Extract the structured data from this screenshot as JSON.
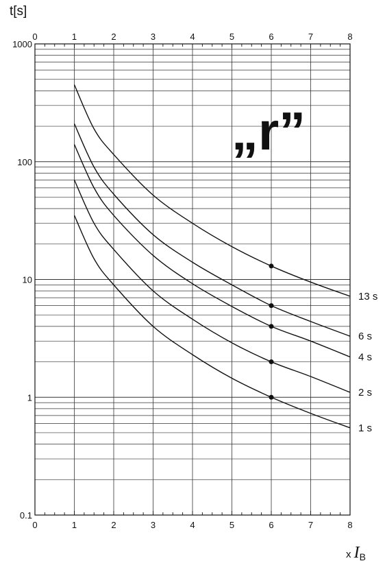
{
  "chart_data": {
    "type": "line",
    "annotation": "„r”",
    "ylabel": "t[s]",
    "xlabel_prefix": "x ",
    "xlabel_symbol": "I",
    "xlabel_subscript": "B",
    "xlim": [
      0,
      8
    ],
    "ylim": [
      0.1,
      1000
    ],
    "yscale": "log",
    "grid": true,
    "x_ticks": [
      "0",
      "1",
      "2",
      "3",
      "4",
      "5",
      "6",
      "7",
      "8"
    ],
    "y_ticks": [
      "0.1",
      "1",
      "10",
      "100",
      "1000"
    ],
    "y_tick_values": [
      0.1,
      1,
      10,
      100,
      1000
    ],
    "series": [
      {
        "name": "13 s",
        "x": [
          1,
          1.5,
          2,
          3,
          4,
          5,
          6,
          7,
          8
        ],
        "y": [
          450,
          190,
          115,
          52,
          30,
          19,
          13,
          9.5,
          7.2
        ]
      },
      {
        "name": "6 s",
        "x": [
          1,
          1.5,
          2,
          3,
          4,
          5,
          6,
          7,
          8
        ],
        "y": [
          210,
          90,
          53,
          24,
          14,
          9,
          6,
          4.4,
          3.3
        ]
      },
      {
        "name": "4 s",
        "x": [
          1,
          1.5,
          2,
          3,
          4,
          5,
          6,
          7,
          8
        ],
        "y": [
          140,
          60,
          35,
          16,
          9.2,
          5.9,
          4,
          3,
          2.2
        ]
      },
      {
        "name": "2 s",
        "x": [
          1,
          1.5,
          2,
          3,
          4,
          5,
          6,
          7,
          8
        ],
        "y": [
          70,
          30,
          18,
          8,
          4.6,
          2.9,
          2,
          1.5,
          1.1
        ]
      },
      {
        "name": "1 s",
        "x": [
          1,
          1.5,
          2,
          3,
          4,
          5,
          6,
          7,
          8
        ],
        "y": [
          35,
          15,
          9,
          4,
          2.3,
          1.45,
          1,
          0.73,
          0.55
        ]
      }
    ],
    "markers": [
      {
        "x": 6,
        "y": 13
      },
      {
        "x": 6,
        "y": 6
      },
      {
        "x": 6,
        "y": 4
      },
      {
        "x": 6,
        "y": 2
      },
      {
        "x": 6,
        "y": 1
      }
    ]
  }
}
